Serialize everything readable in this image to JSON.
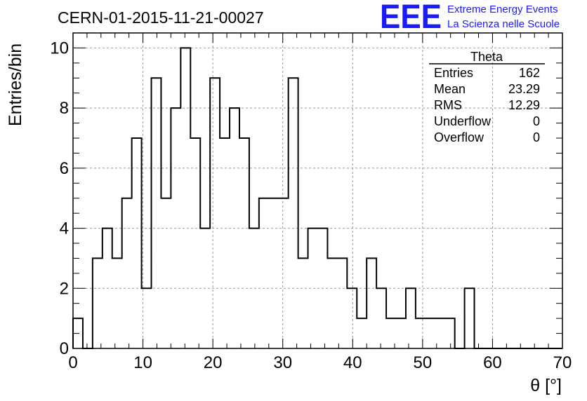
{
  "title": "CERN-01-2015-11-21-00027",
  "logo": {
    "text": "EEE",
    "line1": "Extreme Energy Events",
    "line2": "La Scienza nelle Scuole",
    "color": "#1a1aff"
  },
  "stats": {
    "name": "Theta",
    "rows": [
      {
        "label": "Entries",
        "value": "162"
      },
      {
        "label": "Mean",
        "value": "23.29"
      },
      {
        "label": "RMS",
        "value": "12.29"
      },
      {
        "label": "Underflow",
        "value": "0"
      },
      {
        "label": "Overflow",
        "value": "0"
      }
    ]
  },
  "chart_data": {
    "type": "histogram",
    "title": "CERN-01-2015-11-21-00027",
    "xlabel": "θ [°]",
    "ylabel": "Entries/bin",
    "xlim": [
      0,
      70
    ],
    "ylim": [
      0,
      10.5
    ],
    "bin_width": 1.4,
    "bins": 50,
    "values": [
      1,
      0,
      3,
      4,
      3,
      5,
      7,
      2,
      9,
      5,
      8,
      10,
      7,
      4,
      9,
      7,
      8,
      7,
      4,
      5,
      5,
      5,
      9,
      3,
      4,
      4,
      3,
      3,
      2,
      1,
      3,
      2,
      1,
      1,
      2,
      1,
      1,
      1,
      1,
      0,
      2,
      0,
      0,
      0,
      0,
      0,
      0,
      0,
      0,
      0
    ],
    "x_ticks": [
      "0",
      "10",
      "20",
      "30",
      "40",
      "50",
      "60",
      "70"
    ],
    "y_ticks": [
      "0",
      "2",
      "4",
      "6",
      "8",
      "10"
    ],
    "grid": true,
    "line_color": "#000000"
  }
}
